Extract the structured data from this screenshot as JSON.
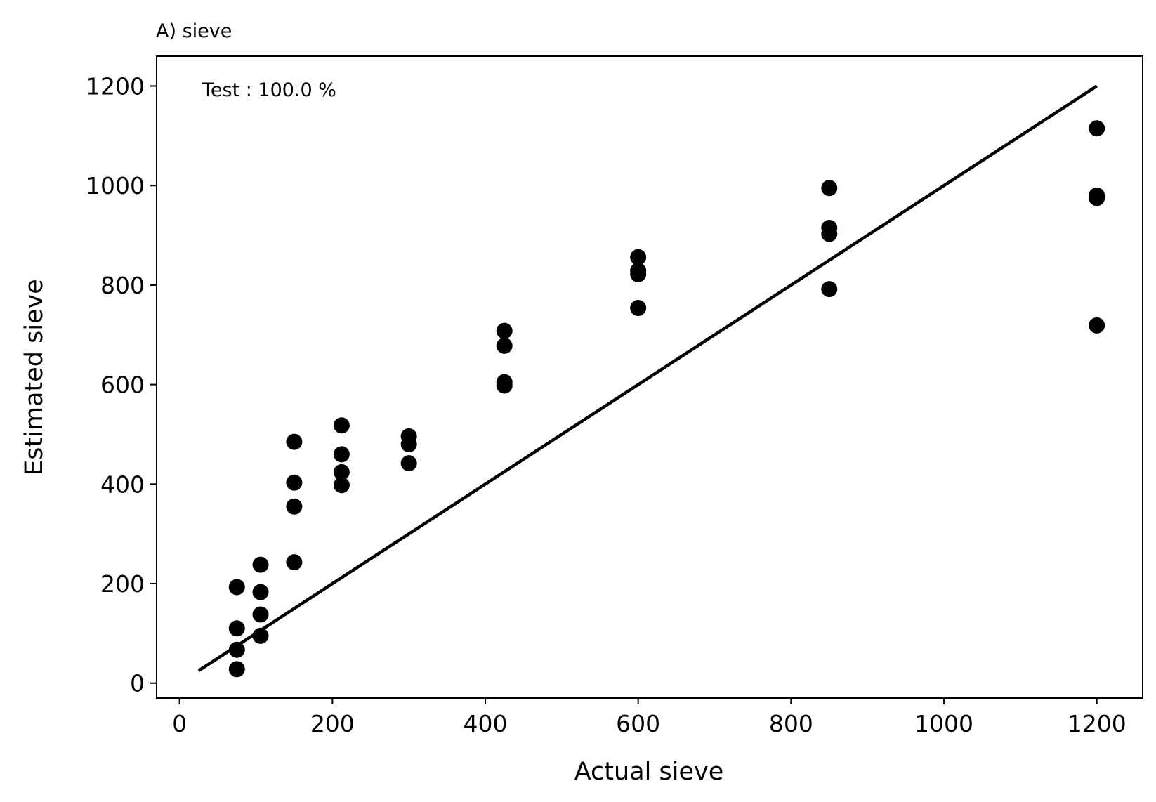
{
  "chart_data": {
    "type": "scatter",
    "title": "A) sieve",
    "xlabel": "Actual sieve",
    "ylabel": "Estimated sieve",
    "annotation": "Test : 100.0 %",
    "xlim": [
      -30,
      1260
    ],
    "ylim": [
      -30,
      1260
    ],
    "xticks": [
      0,
      200,
      400,
      600,
      800,
      1000,
      1200
    ],
    "yticks": [
      0,
      200,
      400,
      600,
      800,
      1000,
      1200
    ],
    "grid": false,
    "colors": {
      "points": "#000000",
      "line": "#000000"
    },
    "reference_line": {
      "x": [
        25,
        1200
      ],
      "y": [
        25,
        1200
      ]
    },
    "series": [
      {
        "x": [
          75,
          75,
          75,
          75,
          106,
          106,
          106,
          106,
          150,
          150,
          150,
          150,
          212,
          212,
          212,
          212,
          300,
          300,
          300,
          425,
          425,
          425,
          425,
          600,
          600,
          600,
          600,
          850,
          850,
          850,
          850,
          1200,
          1200,
          1200,
          1200
        ],
        "y": [
          193,
          110,
          67,
          28,
          238,
          183,
          138,
          95,
          485,
          403,
          355,
          243,
          518,
          460,
          424,
          398,
          496,
          480,
          442,
          708,
          678,
          605,
          598,
          856,
          829,
          822,
          754,
          995,
          915,
          903,
          792,
          1115,
          980,
          975,
          719
        ]
      }
    ]
  }
}
